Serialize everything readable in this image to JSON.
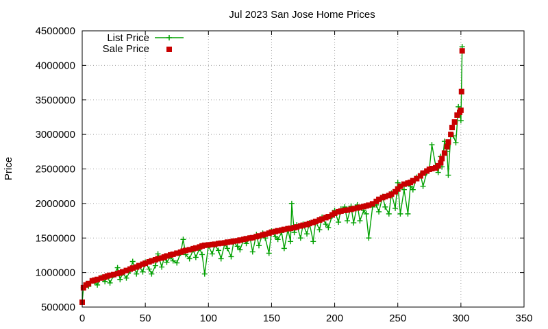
{
  "chart_data": {
    "type": "line",
    "title": "Jul 2023 San Jose Home Prices",
    "xlabel": "",
    "ylabel": "Price",
    "xlim": [
      0,
      350
    ],
    "ylim": [
      500000,
      4500000
    ],
    "x_ticks": [
      "0",
      "50",
      "100",
      "150",
      "200",
      "250",
      "300",
      "350"
    ],
    "y_ticks": [
      "500000",
      "1000000",
      "1500000",
      "2000000",
      "2500000",
      "3000000",
      "3500000",
      "4000000",
      "4500000"
    ],
    "grid": true,
    "legend_position": "top-left",
    "series_order": "records sorted by sale price; x = record index 0-301",
    "series": [
      {
        "name": "List Price",
        "style": "line with plus markers",
        "color": "#00a000",
        "points": [
          [
            0,
            570000
          ],
          [
            1,
            780000
          ],
          [
            3,
            830000
          ],
          [
            5,
            800000
          ],
          [
            8,
            880000
          ],
          [
            10,
            860000
          ],
          [
            12,
            820000
          ],
          [
            15,
            930000
          ],
          [
            18,
            870000
          ],
          [
            20,
            950000
          ],
          [
            22,
            850000
          ],
          [
            25,
            960000
          ],
          [
            28,
            1070000
          ],
          [
            30,
            900000
          ],
          [
            32,
            990000
          ],
          [
            35,
            920000
          ],
          [
            38,
            1020000
          ],
          [
            40,
            1160000
          ],
          [
            43,
            980000
          ],
          [
            45,
            1090000
          ],
          [
            48,
            1010000
          ],
          [
            50,
            1150000
          ],
          [
            53,
            1050000
          ],
          [
            55,
            980000
          ],
          [
            58,
            1100000
          ],
          [
            60,
            1270000
          ],
          [
            63,
            1080000
          ],
          [
            65,
            1220000
          ],
          [
            67,
            1150000
          ],
          [
            70,
            1230000
          ],
          [
            72,
            1170000
          ],
          [
            75,
            1140000
          ],
          [
            78,
            1280000
          ],
          [
            80,
            1480000
          ],
          [
            82,
            1260000
          ],
          [
            85,
            1200000
          ],
          [
            88,
            1330000
          ],
          [
            90,
            1220000
          ],
          [
            93,
            1350000
          ],
          [
            95,
            1260000
          ],
          [
            97,
            980000
          ],
          [
            100,
            1390000
          ],
          [
            103,
            1270000
          ],
          [
            105,
            1400000
          ],
          [
            108,
            1320000
          ],
          [
            110,
            1200000
          ],
          [
            113,
            1420000
          ],
          [
            115,
            1350000
          ],
          [
            118,
            1230000
          ],
          [
            120,
            1440000
          ],
          [
            123,
            1380000
          ],
          [
            125,
            1330000
          ],
          [
            128,
            1480000
          ],
          [
            130,
            1420000
          ],
          [
            133,
            1500000
          ],
          [
            135,
            1300000
          ],
          [
            138,
            1550000
          ],
          [
            140,
            1390000
          ],
          [
            143,
            1570000
          ],
          [
            145,
            1500000
          ],
          [
            148,
            1280000
          ],
          [
            150,
            1600000
          ],
          [
            153,
            1520000
          ],
          [
            155,
            1480000
          ],
          [
            158,
            1580000
          ],
          [
            160,
            1350000
          ],
          [
            163,
            1620000
          ],
          [
            165,
            1450000
          ],
          [
            166,
            2000000
          ],
          [
            168,
            1580000
          ],
          [
            170,
            1690000
          ],
          [
            173,
            1500000
          ],
          [
            175,
            1700000
          ],
          [
            178,
            1560000
          ],
          [
            180,
            1720000
          ],
          [
            183,
            1450000
          ],
          [
            185,
            1740000
          ],
          [
            188,
            1620000
          ],
          [
            190,
            1800000
          ],
          [
            193,
            1700000
          ],
          [
            195,
            1650000
          ],
          [
            198,
            1820000
          ],
          [
            200,
            1900000
          ],
          [
            203,
            1730000
          ],
          [
            205,
            1920000
          ],
          [
            208,
            1950000
          ],
          [
            210,
            1750000
          ],
          [
            213,
            1960000
          ],
          [
            215,
            1720000
          ],
          [
            218,
            1980000
          ],
          [
            220,
            1750000
          ],
          [
            223,
            1900000
          ],
          [
            225,
            1850000
          ],
          [
            227,
            1500000
          ],
          [
            230,
            1950000
          ],
          [
            233,
            1980000
          ],
          [
            235,
            1880000
          ],
          [
            238,
            2100000
          ],
          [
            240,
            1950000
          ],
          [
            243,
            1850000
          ],
          [
            245,
            2150000
          ],
          [
            248,
            1930000
          ],
          [
            250,
            2300000
          ],
          [
            252,
            1850000
          ],
          [
            255,
            2200000
          ],
          [
            258,
            1850000
          ],
          [
            260,
            2250000
          ],
          [
            262,
            2200000
          ],
          [
            265,
            2380000
          ],
          [
            268,
            2420000
          ],
          [
            270,
            2250000
          ],
          [
            273,
            2450000
          ],
          [
            275,
            2500000
          ],
          [
            277,
            2850000
          ],
          [
            280,
            2550000
          ],
          [
            282,
            2450000
          ],
          [
            284,
            2680000
          ],
          [
            285,
            2530000
          ],
          [
            287,
            2900000
          ],
          [
            289,
            2750000
          ],
          [
            290,
            2410000
          ],
          [
            292,
            3000000
          ],
          [
            294,
            2980000
          ],
          [
            296,
            2880000
          ],
          [
            298,
            3400000
          ],
          [
            299,
            3350000
          ],
          [
            300,
            3200000
          ],
          [
            301,
            4270000
          ]
        ]
      },
      {
        "name": "Sale Price",
        "style": "square markers",
        "color": "#c80000",
        "points": [
          [
            0,
            570000
          ],
          [
            1,
            780000
          ],
          [
            3,
            820000
          ],
          [
            5,
            840000
          ],
          [
            8,
            880000
          ],
          [
            10,
            890000
          ],
          [
            12,
            900000
          ],
          [
            15,
            920000
          ],
          [
            18,
            935000
          ],
          [
            20,
            950000
          ],
          [
            22,
            960000
          ],
          [
            25,
            970000
          ],
          [
            28,
            985000
          ],
          [
            30,
            995000
          ],
          [
            32,
            1010000
          ],
          [
            35,
            1030000
          ],
          [
            38,
            1050000
          ],
          [
            40,
            1065000
          ],
          [
            43,
            1080000
          ],
          [
            45,
            1100000
          ],
          [
            48,
            1120000
          ],
          [
            50,
            1135000
          ],
          [
            53,
            1155000
          ],
          [
            55,
            1170000
          ],
          [
            58,
            1185000
          ],
          [
            60,
            1200000
          ],
          [
            63,
            1210000
          ],
          [
            65,
            1225000
          ],
          [
            67,
            1240000
          ],
          [
            70,
            1255000
          ],
          [
            72,
            1265000
          ],
          [
            75,
            1280000
          ],
          [
            78,
            1295000
          ],
          [
            80,
            1310000
          ],
          [
            82,
            1320000
          ],
          [
            85,
            1330000
          ],
          [
            88,
            1345000
          ],
          [
            90,
            1355000
          ],
          [
            93,
            1370000
          ],
          [
            95,
            1385000
          ],
          [
            97,
            1395000
          ],
          [
            100,
            1400000
          ],
          [
            103,
            1405000
          ],
          [
            105,
            1410000
          ],
          [
            108,
            1420000
          ],
          [
            110,
            1425000
          ],
          [
            113,
            1430000
          ],
          [
            115,
            1440000
          ],
          [
            118,
            1445000
          ],
          [
            120,
            1455000
          ],
          [
            123,
            1460000
          ],
          [
            125,
            1470000
          ],
          [
            128,
            1480000
          ],
          [
            130,
            1490000
          ],
          [
            133,
            1500000
          ],
          [
            135,
            1505000
          ],
          [
            138,
            1520000
          ],
          [
            140,
            1530000
          ],
          [
            143,
            1545000
          ],
          [
            145,
            1555000
          ],
          [
            148,
            1570000
          ],
          [
            150,
            1585000
          ],
          [
            153,
            1595000
          ],
          [
            155,
            1605000
          ],
          [
            158,
            1615000
          ],
          [
            160,
            1625000
          ],
          [
            163,
            1635000
          ],
          [
            165,
            1640000
          ],
          [
            168,
            1650000
          ],
          [
            170,
            1660000
          ],
          [
            173,
            1675000
          ],
          [
            175,
            1685000
          ],
          [
            178,
            1695000
          ],
          [
            180,
            1710000
          ],
          [
            183,
            1725000
          ],
          [
            185,
            1740000
          ],
          [
            188,
            1760000
          ],
          [
            190,
            1775000
          ],
          [
            193,
            1795000
          ],
          [
            195,
            1810000
          ],
          [
            198,
            1835000
          ],
          [
            200,
            1860000
          ],
          [
            203,
            1880000
          ],
          [
            205,
            1890000
          ],
          [
            208,
            1900000
          ],
          [
            210,
            1905000
          ],
          [
            213,
            1915000
          ],
          [
            215,
            1925000
          ],
          [
            218,
            1935000
          ],
          [
            220,
            1945000
          ],
          [
            223,
            1955000
          ],
          [
            225,
            1965000
          ],
          [
            227,
            1975000
          ],
          [
            230,
            1995000
          ],
          [
            233,
            2030000
          ],
          [
            235,
            2060000
          ],
          [
            238,
            2085000
          ],
          [
            240,
            2100000
          ],
          [
            243,
            2115000
          ],
          [
            245,
            2135000
          ],
          [
            248,
            2170000
          ],
          [
            250,
            2210000
          ],
          [
            252,
            2250000
          ],
          [
            255,
            2280000
          ],
          [
            258,
            2295000
          ],
          [
            260,
            2305000
          ],
          [
            262,
            2330000
          ],
          [
            265,
            2360000
          ],
          [
            268,
            2400000
          ],
          [
            270,
            2440000
          ],
          [
            273,
            2470000
          ],
          [
            275,
            2495000
          ],
          [
            277,
            2505000
          ],
          [
            280,
            2515000
          ],
          [
            282,
            2545000
          ],
          [
            284,
            2590000
          ],
          [
            285,
            2650000
          ],
          [
            287,
            2730000
          ],
          [
            289,
            2820000
          ],
          [
            290,
            2890000
          ],
          [
            292,
            3000000
          ],
          [
            293,
            3100000
          ],
          [
            295,
            3180000
          ],
          [
            297,
            3280000
          ],
          [
            299,
            3320000
          ],
          [
            300,
            3350000
          ],
          [
            300.5,
            3620000
          ],
          [
            301,
            4210000
          ]
        ]
      }
    ]
  }
}
